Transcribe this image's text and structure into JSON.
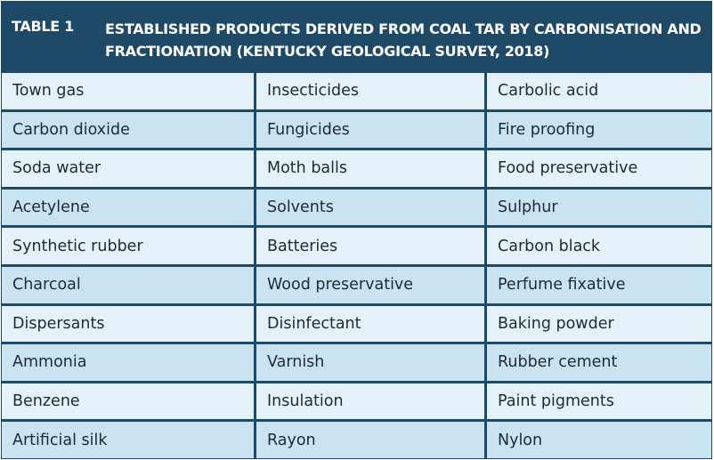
{
  "table": {
    "label": "TABLE 1",
    "title": "ESTABLISHED PRODUCTS DERIVED FROM COAL TAR BY CARBONISATION AND FRACTIONATION (KENTUCKY GEOLOGICAL SURVEY, 2018)",
    "rows": [
      [
        "Town gas",
        "Insecticides",
        "Carbolic acid"
      ],
      [
        "Carbon dioxide",
        "Fungicides",
        "Fire proofing"
      ],
      [
        "Soda water",
        "Moth balls",
        "Food preservative"
      ],
      [
        "Acetylene",
        "Solvents",
        "Sulphur"
      ],
      [
        "Synthetic rubber",
        "Batteries",
        "Carbon black"
      ],
      [
        "Charcoal",
        "Wood preservative",
        "Perfume fixative"
      ],
      [
        "Dispersants",
        "Disinfectant",
        "Baking powder"
      ],
      [
        "Ammonia",
        "Varnish",
        "Rubber cement"
      ],
      [
        "Benzene",
        "Insulation",
        "Paint pigments"
      ],
      [
        "Artificial silk",
        "Rayon",
        "Nylon"
      ]
    ]
  },
  "colors": {
    "header_bg": "#1f4a67",
    "row_light": "#e5f1f8",
    "row_dark": "#c9e3f1"
  }
}
